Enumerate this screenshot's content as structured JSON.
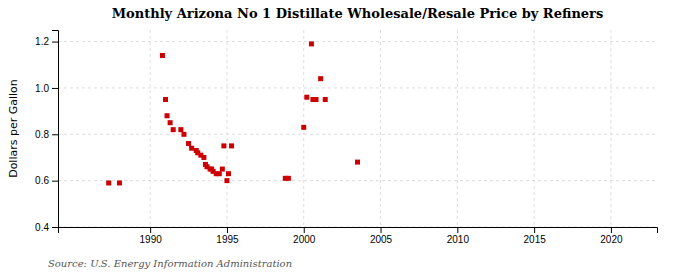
{
  "chart_data": {
    "type": "scatter",
    "title": "Monthly Arizona No 1 Distillate Wholesale/Resale Price by Refiners",
    "ylabel": "Dollars per Gallon",
    "annotations": [
      "Source: U.S. Energy Information Administration"
    ],
    "x": [
      1987.3,
      1988.0,
      1990.8,
      1991.0,
      1991.1,
      1991.3,
      1991.5,
      1992.0,
      1992.2,
      1992.5,
      1992.7,
      1993.0,
      1993.1,
      1993.3,
      1993.5,
      1993.6,
      1993.7,
      1993.9,
      1994.0,
      1994.1,
      1994.3,
      1994.5,
      1994.7,
      1994.8,
      1995.0,
      1995.1,
      1995.3,
      1998.8,
      1999.0,
      2000.0,
      2000.2,
      2000.5,
      2000.6,
      2000.8,
      2001.1,
      2001.4,
      2003.5
    ],
    "values": [
      0.59,
      0.59,
      1.14,
      0.95,
      0.88,
      0.85,
      0.82,
      0.82,
      0.8,
      0.76,
      0.74,
      0.73,
      0.72,
      0.71,
      0.7,
      0.67,
      0.66,
      0.65,
      0.65,
      0.64,
      0.63,
      0.63,
      0.65,
      0.75,
      0.6,
      0.63,
      0.75,
      0.61,
      0.61,
      0.83,
      0.96,
      1.19,
      0.95,
      0.95,
      1.04,
      0.95,
      0.68
    ],
    "color": "#cc0000",
    "marker": "square",
    "xlim": [
      1984,
      2023
    ],
    "ylim": [
      0.4,
      1.25
    ],
    "xticks": [
      1990,
      1995,
      2000,
      2005,
      2010,
      2015,
      2020
    ],
    "yticks": [
      0.4,
      0.6,
      0.8,
      {
        "value": 1.0,
        "label": "1.0"
      },
      1.2
    ],
    "grid": true
  }
}
